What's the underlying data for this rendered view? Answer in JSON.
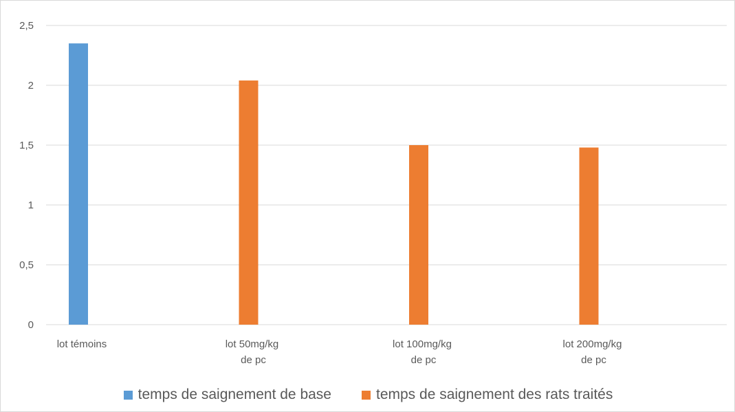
{
  "chart_data": {
    "type": "bar",
    "categories": [
      "lot témoins",
      "lot 50mg/kg de pc",
      "lot 100mg/kg de pc",
      "lot 200mg/kg de pc"
    ],
    "category_lines": [
      [
        "lot témoins"
      ],
      [
        "lot 50mg/kg",
        "de pc"
      ],
      [
        "lot 100mg/kg",
        "de pc"
      ],
      [
        "lot 200mg/kg",
        "de pc"
      ]
    ],
    "series": [
      {
        "name": "temps de saignement de base",
        "color": "#5b9bd5",
        "values": [
          2.35,
          null,
          null,
          null
        ]
      },
      {
        "name": "temps de saignement  des rats traités",
        "color": "#ed7d31",
        "values": [
          null,
          2.04,
          1.5,
          1.48
        ]
      }
    ],
    "ylim": [
      0,
      2.5
    ],
    "yticks": [
      0,
      0.5,
      1,
      1.5,
      2,
      2.5
    ],
    "ytick_labels": [
      "0",
      "0,5",
      "1",
      "1,5",
      "2",
      "2,5"
    ],
    "grid": true,
    "legend_position": "bottom",
    "title": "",
    "xlabel": "",
    "ylabel": ""
  }
}
